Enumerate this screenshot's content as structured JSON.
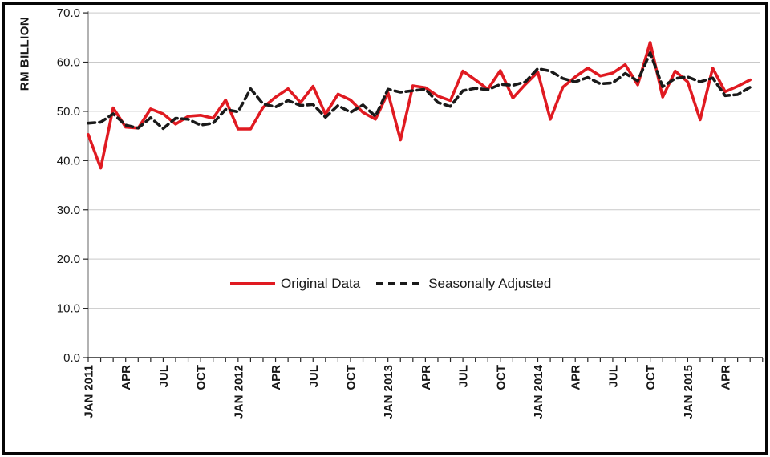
{
  "y_axis": {
    "title": "RM BILLION",
    "tick_labels": [
      "0.0",
      "10.0",
      "20.0",
      "30.0",
      "40.0",
      "50.0",
      "60.0",
      "70.0"
    ]
  },
  "x_axis": {
    "tick_labels": [
      "JAN 2011",
      "APR",
      "JUL",
      "OCT",
      "JAN 2012",
      "APR",
      "JUL",
      "OCT",
      "JAN 2013",
      "APR",
      "JUL",
      "OCT",
      "JAN 2014",
      "APR",
      "JUL",
      "OCT",
      "JAN 2015",
      "APR"
    ],
    "label_step": 3
  },
  "legend": {
    "original_label": "Original Data",
    "adjusted_label": "Seasonally Adjusted"
  },
  "colors": {
    "original_line": "#e01a21",
    "adjusted_line": "#1a1a1a",
    "gridline": "#c9c9c9",
    "y_axis_line": "#7f7f7f",
    "x_axis_line": "#262626",
    "tick_text": "#171717",
    "frame": "#060606"
  },
  "chart_data": {
    "type": "line",
    "title": "",
    "ylabel": "RM BILLION",
    "xlabel": "",
    "ylim": [
      0,
      70
    ],
    "y_step": 10,
    "grid": true,
    "legend_position": "inside-bottom-center",
    "categories": [
      "JAN 2011",
      "FEB 2011",
      "MAR 2011",
      "APR 2011",
      "MAY 2011",
      "JUN 2011",
      "JUL 2011",
      "AUG 2011",
      "SEP 2011",
      "OCT 2011",
      "NOV 2011",
      "DEC 2011",
      "JAN 2012",
      "FEB 2012",
      "MAR 2012",
      "APR 2012",
      "MAY 2012",
      "JUN 2012",
      "JUL 2012",
      "AUG 2012",
      "SEP 2012",
      "OCT 2012",
      "NOV 2012",
      "DEC 2012",
      "JAN 2013",
      "FEB 2013",
      "MAR 2013",
      "APR 2013",
      "MAY 2013",
      "JUN 2013",
      "JUL 2013",
      "AUG 2013",
      "SEP 2013",
      "OCT 2013",
      "NOV 2013",
      "DEC 2013",
      "JAN 2014",
      "FEB 2014",
      "MAR 2014",
      "APR 2014",
      "MAY 2014",
      "JUN 2014",
      "JUL 2014",
      "AUG 2014",
      "SEP 2014",
      "OCT 2014",
      "NOV 2014",
      "DEC 2014",
      "JAN 2015",
      "FEB 2015",
      "MAR 2015",
      "APR 2015",
      "MAY 2015",
      "JUN 2015"
    ],
    "series": [
      {
        "name": "Original Data",
        "style": "solid",
        "color": "#e01a21",
        "values": [
          45.3,
          38.5,
          50.7,
          46.8,
          46.6,
          50.5,
          49.5,
          47.4,
          49.0,
          49.2,
          48.6,
          52.3,
          46.4,
          46.4,
          50.8,
          52.9,
          54.6,
          51.8,
          55.1,
          49.4,
          53.5,
          52.3,
          49.8,
          48.4,
          53.8,
          44.2,
          55.2,
          54.8,
          53.1,
          52.2,
          58.2,
          56.4,
          54.5,
          58.3,
          52.7,
          55.5,
          58.0,
          48.4,
          54.9,
          57.0,
          58.8,
          57.2,
          57.8,
          59.5,
          55.4,
          64.0,
          52.9,
          58.2,
          56.0,
          48.3,
          58.8,
          54.0,
          55.1,
          56.4
        ]
      },
      {
        "name": "Seasonally Adjusted",
        "style": "dashed",
        "color": "#1a1a1a",
        "values": [
          47.6,
          47.8,
          49.5,
          47.2,
          46.6,
          48.7,
          46.5,
          48.6,
          48.4,
          47.2,
          47.6,
          50.4,
          49.9,
          54.6,
          51.5,
          50.9,
          52.2,
          51.2,
          51.4,
          48.8,
          51.2,
          49.8,
          51.3,
          49.0,
          54.5,
          53.9,
          54.2,
          54.5,
          51.8,
          51.0,
          54.2,
          54.7,
          54.4,
          55.5,
          55.3,
          56.0,
          58.7,
          58.2,
          56.7,
          56.0,
          56.9,
          55.6,
          55.8,
          57.7,
          56.2,
          61.9,
          55.0,
          56.7,
          57.0,
          56.0,
          56.8,
          53.2,
          53.4,
          54.9
        ]
      }
    ]
  }
}
